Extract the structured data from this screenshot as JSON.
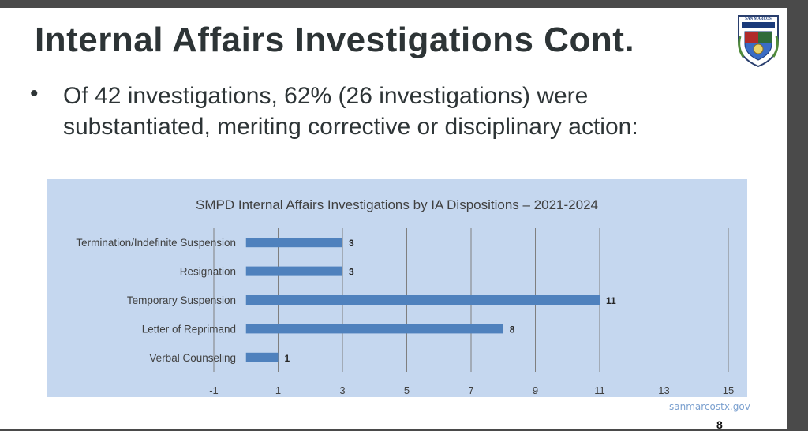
{
  "slide": {
    "title": "Internal Affairs Investigations Cont.",
    "logo_text": "SAN MARCOS",
    "bullet": "Of 42 investigations, 62% (26 investigations) were substantiated, meriting corrective or disciplinary action:",
    "footer_url": "sanmarcostx.gov",
    "page_number": "8"
  },
  "colors": {
    "bar": "#4f81bd",
    "panel": "#c5d7ef",
    "grid": "#7f7f7f",
    "title_text": "#2d3436"
  },
  "chart_data": {
    "type": "bar",
    "orientation": "horizontal",
    "title": "SMPD Internal Affairs Investigations by IA Dispositions – 2021-2024",
    "categories": [
      "Termination/Indefinite Suspension",
      "Resignation",
      "Temporary Suspension",
      "Letter of Reprimand",
      "Verbal Counseling"
    ],
    "values": [
      3,
      3,
      11,
      8,
      1
    ],
    "xlim": [
      -1,
      15
    ],
    "xticks": [
      "-1",
      "1",
      "3",
      "5",
      "7",
      "9",
      "11",
      "13",
      "15"
    ],
    "grid": "vertical",
    "legend": "none",
    "data_labels": true
  }
}
